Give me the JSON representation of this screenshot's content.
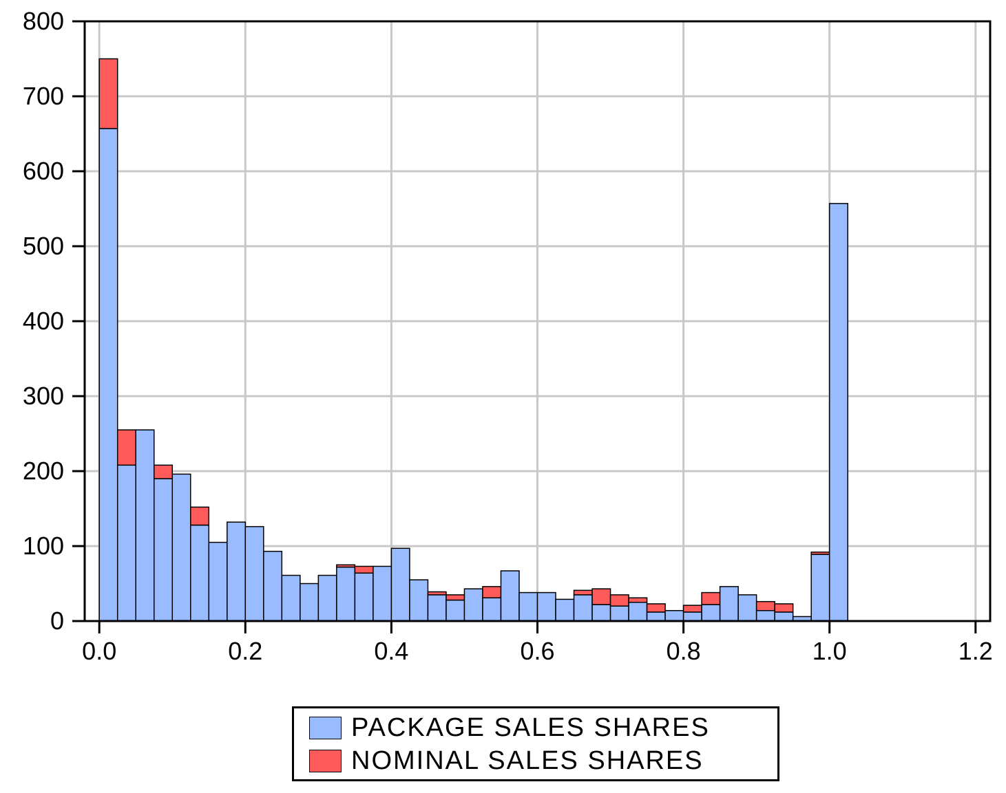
{
  "chart_data": {
    "type": "bar",
    "stacked": true,
    "x_ticks": [
      "0.0",
      "0.2",
      "0.4",
      "0.6",
      "0.8",
      "1.0",
      "1.2"
    ],
    "y_ticks": [
      "0",
      "100",
      "200",
      "300",
      "400",
      "500",
      "600",
      "700",
      "800"
    ],
    "xlim": [
      -0.02,
      1.22
    ],
    "ylim": [
      0,
      800
    ],
    "grid": true,
    "legend_position": "bottom",
    "bins": [
      [
        0.0,
        0.025
      ],
      [
        0.025,
        0.05
      ],
      [
        0.05,
        0.075
      ],
      [
        0.075,
        0.1
      ],
      [
        0.1,
        0.125
      ],
      [
        0.125,
        0.15
      ],
      [
        0.15,
        0.175
      ],
      [
        0.175,
        0.2
      ],
      [
        0.2,
        0.225
      ],
      [
        0.225,
        0.25
      ],
      [
        0.25,
        0.275
      ],
      [
        0.275,
        0.3
      ],
      [
        0.3,
        0.325
      ],
      [
        0.325,
        0.35
      ],
      [
        0.35,
        0.375
      ],
      [
        0.375,
        0.4
      ],
      [
        0.4,
        0.425
      ],
      [
        0.425,
        0.45
      ],
      [
        0.45,
        0.475
      ],
      [
        0.475,
        0.5
      ],
      [
        0.5,
        0.525
      ],
      [
        0.525,
        0.55
      ],
      [
        0.55,
        0.575
      ],
      [
        0.575,
        0.6
      ],
      [
        0.6,
        0.625
      ],
      [
        0.625,
        0.65
      ],
      [
        0.65,
        0.675
      ],
      [
        0.675,
        0.7
      ],
      [
        0.7,
        0.725
      ],
      [
        0.725,
        0.75
      ],
      [
        0.75,
        0.775
      ],
      [
        0.775,
        0.8
      ],
      [
        0.8,
        0.825
      ],
      [
        0.825,
        0.85
      ],
      [
        0.85,
        0.875
      ],
      [
        0.875,
        0.9
      ],
      [
        0.9,
        0.925
      ],
      [
        0.925,
        0.95
      ],
      [
        0.95,
        0.975
      ],
      [
        0.975,
        1.0
      ],
      [
        1.0,
        1.025
      ]
    ],
    "series": [
      {
        "name": "PACKAGE SALES SHARES",
        "color": "#99bbff",
        "values": [
          657,
          208,
          255,
          190,
          196,
          128,
          105,
          132,
          126,
          93,
          61,
          50,
          61,
          72,
          64,
          73,
          97,
          55,
          35,
          28,
          43,
          31,
          67,
          38,
          38,
          29,
          35,
          22,
          20,
          25,
          12,
          14,
          12,
          22,
          46,
          35,
          14,
          12,
          6,
          89,
          557
        ]
      },
      {
        "name": "NOMINAL SALES SHARES",
        "color": "#ff5b5b",
        "values": [
          93,
          47,
          0,
          18,
          0,
          24,
          0,
          0,
          0,
          0,
          0,
          0,
          0,
          3,
          9,
          0,
          0,
          0,
          4,
          7,
          0,
          15,
          0,
          0,
          0,
          0,
          6,
          21,
          15,
          6,
          11,
          0,
          9,
          16,
          0,
          0,
          12,
          11,
          0,
          3,
          0
        ]
      }
    ]
  }
}
